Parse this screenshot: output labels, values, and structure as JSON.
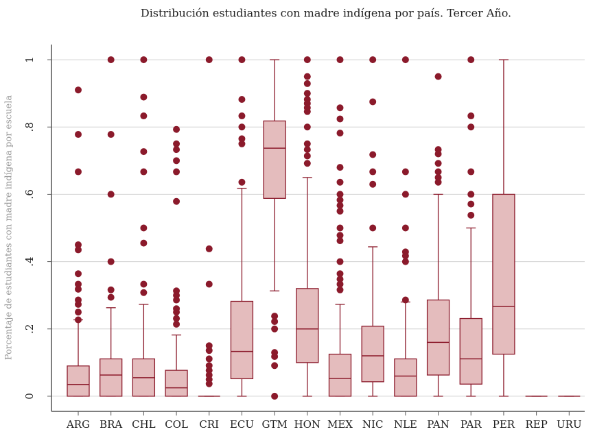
{
  "chart_data": {
    "type": "box",
    "title": "Distribución estudiantes con madre indígena por país. Tercer Año.",
    "y_label": "Porcentaje de estudiantes con madre indígena por escuela",
    "categories": [
      "ARG",
      "BRA",
      "CHL",
      "COL",
      "CRI",
      "ECU",
      "GTM",
      "HON",
      "MEX",
      "NIC",
      "NLE",
      "PAN",
      "PAR",
      "PER",
      "REP",
      "URU"
    ],
    "boxes": [
      {
        "low": 0,
        "q1": 0,
        "median": 0.035,
        "q3": 0.09,
        "high": 0.227,
        "outliers": [
          0.91,
          0.778,
          0.667,
          0.45,
          0.435,
          0.364,
          0.333,
          0.318,
          0.286,
          0.273,
          0.25,
          0.227
        ]
      },
      {
        "low": 0,
        "q1": 0,
        "median": 0.063,
        "q3": 0.111,
        "high": 0.263,
        "outliers": [
          1,
          0.778,
          0.6,
          0.4,
          0.316,
          0.294
        ]
      },
      {
        "low": 0,
        "q1": 0,
        "median": 0.055,
        "q3": 0.111,
        "high": 0.273,
        "outliers": [
          1,
          0.889,
          0.833,
          0.727,
          0.667,
          0.5,
          0.455,
          0.333,
          0.308
        ]
      },
      {
        "low": 0,
        "q1": 0,
        "median": 0.025,
        "q3": 0.077,
        "high": 0.182,
        "outliers": [
          0.793,
          0.75,
          0.733,
          0.7,
          0.667,
          0.579,
          0.313,
          0.3,
          0.286,
          0.26,
          0.25,
          0.231,
          0.214
        ]
      },
      {
        "low": 0,
        "q1": 0,
        "median": 0,
        "q3": 0,
        "high": 0,
        "outliers": [
          1,
          0.438,
          0.333,
          0.15,
          0.136,
          0.111,
          0.091,
          0.077,
          0.063,
          0.05,
          0.037
        ]
      },
      {
        "low": 0,
        "q1": 0.052,
        "median": 0.133,
        "q3": 0.282,
        "high": 0.618,
        "outliers": [
          1,
          0.882,
          0.833,
          0.8,
          0.765,
          0.75,
          0.636
        ]
      },
      {
        "low": 0.313,
        "q1": 0.588,
        "median": 0.737,
        "q3": 0.818,
        "high": 1,
        "outliers": [
          0.238,
          0.222,
          0.2,
          0.13,
          0.118,
          0.091,
          0
        ]
      },
      {
        "low": 0,
        "q1": 0.1,
        "median": 0.2,
        "q3": 0.32,
        "high": 0.65,
        "outliers": [
          1,
          0.95,
          0.929,
          0.9,
          0.882,
          0.87,
          0.857,
          0.846,
          0.8,
          0.75,
          0.733,
          0.714,
          0.692
        ]
      },
      {
        "low": 0,
        "q1": 0,
        "median": 0.053,
        "q3": 0.125,
        "high": 0.273,
        "outliers": [
          1,
          0.857,
          0.824,
          0.782,
          0.68,
          0.636,
          0.6,
          0.583,
          0.567,
          0.55,
          0.5,
          0.478,
          0.462,
          0.4,
          0.364,
          0.348,
          0.333,
          0.316
        ]
      },
      {
        "low": 0,
        "q1": 0.043,
        "median": 0.12,
        "q3": 0.208,
        "high": 0.444,
        "outliers": [
          1,
          0.875,
          0.718,
          0.667,
          0.63,
          0.5
        ]
      },
      {
        "low": 0,
        "q1": 0,
        "median": 0.06,
        "q3": 0.111,
        "high": 0.28,
        "outliers": [
          1,
          0.667,
          0.6,
          0.5,
          0.429,
          0.417,
          0.4,
          0.286
        ]
      },
      {
        "low": 0,
        "q1": 0.063,
        "median": 0.16,
        "q3": 0.286,
        "high": 0.6,
        "outliers": [
          0.95,
          0.733,
          0.72,
          0.692,
          0.667,
          0.65,
          0.636
        ]
      },
      {
        "low": 0,
        "q1": 0.036,
        "median": 0.111,
        "q3": 0.231,
        "high": 0.5,
        "outliers": [
          1,
          0.833,
          0.8,
          0.667,
          0.6,
          0.571,
          0.538
        ]
      },
      {
        "low": 0,
        "q1": 0.125,
        "median": 0.267,
        "q3": 0.6,
        "high": 1,
        "outliers": []
      },
      {
        "low": 0,
        "q1": 0,
        "median": 0,
        "q3": 0,
        "high": 0,
        "outliers": []
      },
      {
        "low": 0,
        "q1": 0,
        "median": 0,
        "q3": 0,
        "high": 0,
        "outliers": []
      }
    ],
    "box_color": "#e4bcbd",
    "line_color": "#8b1a2b",
    "ylim": [
      -0.045,
      1.045
    ],
    "yticks": [
      0,
      {
        "value": 0.2,
        "label": ".2"
      },
      {
        "value": 0.4,
        "label": ".4"
      },
      {
        "value": 0.6,
        "label": ".6"
      },
      {
        "value": 0.8,
        "label": ".8"
      },
      1
    ],
    "grid": true
  }
}
